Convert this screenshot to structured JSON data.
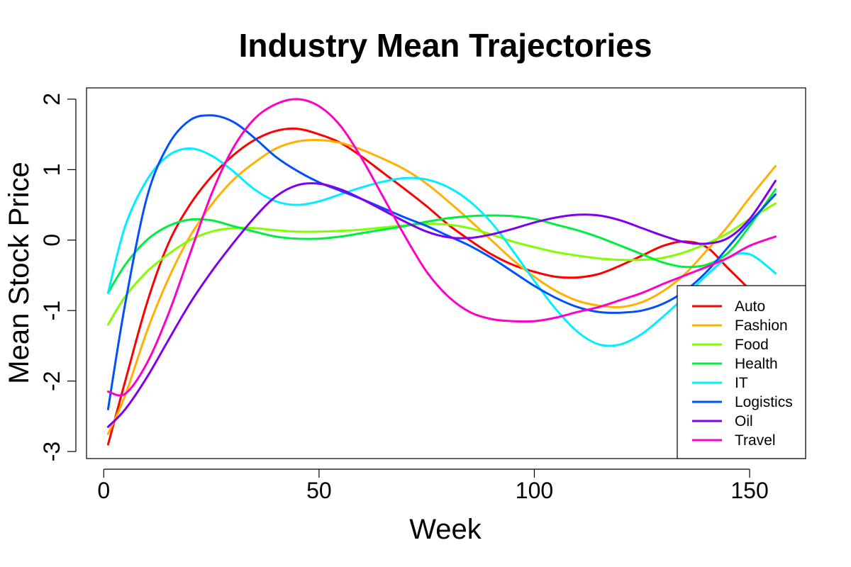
{
  "chart_data": {
    "type": "line",
    "title": "Industry Mean Trajectories",
    "xlabel": "Week",
    "ylabel": "Mean Stock Price",
    "xlim": [
      -4,
      163
    ],
    "ylim": [
      -3.1,
      2.16
    ],
    "xticks": [
      0,
      50,
      100,
      150
    ],
    "yticks": [
      -3,
      -2,
      -1,
      0,
      1,
      2
    ],
    "x_tick_labels": [
      "0",
      "50",
      "100",
      "150"
    ],
    "y_tick_labels": [
      "-3",
      "-2",
      "-1",
      "0",
      "1",
      "2"
    ],
    "grid": false,
    "legend_position": "bottom-right",
    "series": [
      {
        "name": "Auto",
        "color": "#ff0000",
        "points": [
          [
            1,
            -2.9
          ],
          [
            5,
            -2.0
          ],
          [
            10,
            -0.9
          ],
          [
            15,
            -0.05
          ],
          [
            20,
            0.5
          ],
          [
            25,
            0.9
          ],
          [
            30,
            1.2
          ],
          [
            35,
            1.42
          ],
          [
            40,
            1.55
          ],
          [
            45,
            1.58
          ],
          [
            50,
            1.5
          ],
          [
            55,
            1.38
          ],
          [
            60,
            1.18
          ],
          [
            65,
            0.95
          ],
          [
            70,
            0.72
          ],
          [
            75,
            0.48
          ],
          [
            80,
            0.22
          ],
          [
            85,
            0.0
          ],
          [
            90,
            -0.2
          ],
          [
            95,
            -0.35
          ],
          [
            100,
            -0.45
          ],
          [
            105,
            -0.52
          ],
          [
            110,
            -0.53
          ],
          [
            115,
            -0.48
          ],
          [
            120,
            -0.36
          ],
          [
            125,
            -0.22
          ],
          [
            130,
            -0.08
          ],
          [
            135,
            -0.02
          ],
          [
            140,
            -0.1
          ],
          [
            145,
            -0.4
          ],
          [
            150,
            -0.7
          ]
        ]
      },
      {
        "name": "Fashion",
        "color": "#ffb000",
        "points": [
          [
            1,
            -2.75
          ],
          [
            5,
            -2.2
          ],
          [
            10,
            -1.3
          ],
          [
            15,
            -0.55
          ],
          [
            20,
            0.05
          ],
          [
            25,
            0.5
          ],
          [
            30,
            0.85
          ],
          [
            35,
            1.1
          ],
          [
            40,
            1.3
          ],
          [
            45,
            1.4
          ],
          [
            50,
            1.42
          ],
          [
            55,
            1.38
          ],
          [
            60,
            1.28
          ],
          [
            65,
            1.15
          ],
          [
            70,
            1.0
          ],
          [
            75,
            0.8
          ],
          [
            80,
            0.55
          ],
          [
            85,
            0.28
          ],
          [
            90,
            0.0
          ],
          [
            95,
            -0.28
          ],
          [
            100,
            -0.52
          ],
          [
            105,
            -0.72
          ],
          [
            110,
            -0.86
          ],
          [
            115,
            -0.93
          ],
          [
            120,
            -0.95
          ],
          [
            125,
            -0.88
          ],
          [
            130,
            -0.72
          ],
          [
            135,
            -0.48
          ],
          [
            140,
            -0.15
          ],
          [
            145,
            0.2
          ],
          [
            150,
            0.6
          ],
          [
            156,
            1.05
          ]
        ]
      },
      {
        "name": "Food",
        "color": "#80ff00",
        "points": [
          [
            1,
            -1.2
          ],
          [
            5,
            -0.8
          ],
          [
            10,
            -0.45
          ],
          [
            15,
            -0.2
          ],
          [
            20,
            0.0
          ],
          [
            25,
            0.12
          ],
          [
            30,
            0.17
          ],
          [
            35,
            0.17
          ],
          [
            40,
            0.14
          ],
          [
            45,
            0.12
          ],
          [
            50,
            0.12
          ],
          [
            55,
            0.13
          ],
          [
            60,
            0.15
          ],
          [
            65,
            0.18
          ],
          [
            70,
            0.21
          ],
          [
            75,
            0.23
          ],
          [
            80,
            0.22
          ],
          [
            85,
            0.17
          ],
          [
            90,
            0.08
          ],
          [
            95,
            -0.02
          ],
          [
            100,
            -0.1
          ],
          [
            105,
            -0.17
          ],
          [
            110,
            -0.22
          ],
          [
            115,
            -0.26
          ],
          [
            120,
            -0.28
          ],
          [
            125,
            -0.28
          ],
          [
            130,
            -0.25
          ],
          [
            135,
            -0.17
          ],
          [
            140,
            -0.05
          ],
          [
            145,
            0.1
          ],
          [
            150,
            0.3
          ],
          [
            156,
            0.52
          ]
        ]
      },
      {
        "name": "Health",
        "color": "#00ee40",
        "points": [
          [
            1,
            -0.75
          ],
          [
            5,
            -0.35
          ],
          [
            10,
            0.0
          ],
          [
            15,
            0.2
          ],
          [
            20,
            0.29
          ],
          [
            25,
            0.28
          ],
          [
            30,
            0.2
          ],
          [
            35,
            0.12
          ],
          [
            40,
            0.05
          ],
          [
            45,
            0.02
          ],
          [
            50,
            0.02
          ],
          [
            55,
            0.05
          ],
          [
            60,
            0.1
          ],
          [
            65,
            0.15
          ],
          [
            70,
            0.2
          ],
          [
            75,
            0.26
          ],
          [
            80,
            0.31
          ],
          [
            85,
            0.34
          ],
          [
            90,
            0.35
          ],
          [
            95,
            0.34
          ],
          [
            100,
            0.3
          ],
          [
            105,
            0.22
          ],
          [
            110,
            0.14
          ],
          [
            115,
            0.04
          ],
          [
            120,
            -0.08
          ],
          [
            125,
            -0.2
          ],
          [
            130,
            -0.32
          ],
          [
            135,
            -0.38
          ],
          [
            140,
            -0.35
          ],
          [
            145,
            -0.18
          ],
          [
            150,
            0.2
          ],
          [
            156,
            0.72
          ]
        ]
      },
      {
        "name": "IT",
        "color": "#00eeff",
        "points": [
          [
            1,
            -0.75
          ],
          [
            5,
            0.2
          ],
          [
            10,
            0.85
          ],
          [
            15,
            1.2
          ],
          [
            20,
            1.3
          ],
          [
            25,
            1.2
          ],
          [
            30,
            0.98
          ],
          [
            35,
            0.72
          ],
          [
            40,
            0.55
          ],
          [
            45,
            0.5
          ],
          [
            50,
            0.55
          ],
          [
            55,
            0.65
          ],
          [
            60,
            0.75
          ],
          [
            65,
            0.83
          ],
          [
            70,
            0.88
          ],
          [
            75,
            0.86
          ],
          [
            80,
            0.75
          ],
          [
            85,
            0.55
          ],
          [
            90,
            0.25
          ],
          [
            95,
            -0.15
          ],
          [
            100,
            -0.58
          ],
          [
            105,
            -0.98
          ],
          [
            110,
            -1.3
          ],
          [
            115,
            -1.48
          ],
          [
            120,
            -1.48
          ],
          [
            125,
            -1.33
          ],
          [
            130,
            -1.08
          ],
          [
            135,
            -0.8
          ],
          [
            140,
            -0.5
          ],
          [
            145,
            -0.25
          ],
          [
            150,
            -0.2
          ],
          [
            156,
            -0.47
          ]
        ]
      },
      {
        "name": "Logistics",
        "color": "#0050ff",
        "points": [
          [
            1,
            -2.4
          ],
          [
            5,
            -0.9
          ],
          [
            10,
            0.6
          ],
          [
            15,
            1.35
          ],
          [
            20,
            1.7
          ],
          [
            25,
            1.77
          ],
          [
            30,
            1.68
          ],
          [
            35,
            1.45
          ],
          [
            40,
            1.18
          ],
          [
            45,
            0.98
          ],
          [
            50,
            0.82
          ],
          [
            55,
            0.7
          ],
          [
            60,
            0.58
          ],
          [
            65,
            0.45
          ],
          [
            70,
            0.32
          ],
          [
            75,
            0.2
          ],
          [
            80,
            0.06
          ],
          [
            85,
            -0.08
          ],
          [
            90,
            -0.25
          ],
          [
            95,
            -0.45
          ],
          [
            100,
            -0.65
          ],
          [
            105,
            -0.82
          ],
          [
            110,
            -0.95
          ],
          [
            115,
            -1.02
          ],
          [
            120,
            -1.03
          ],
          [
            125,
            -1.0
          ],
          [
            130,
            -0.9
          ],
          [
            135,
            -0.72
          ],
          [
            140,
            -0.45
          ],
          [
            145,
            -0.1
          ],
          [
            150,
            0.25
          ],
          [
            156,
            0.65
          ]
        ]
      },
      {
        "name": "Oil",
        "color": "#8000ee",
        "points": [
          [
            1,
            -2.65
          ],
          [
            5,
            -2.4
          ],
          [
            10,
            -1.95
          ],
          [
            15,
            -1.42
          ],
          [
            20,
            -0.9
          ],
          [
            25,
            -0.45
          ],
          [
            30,
            -0.05
          ],
          [
            35,
            0.32
          ],
          [
            40,
            0.62
          ],
          [
            45,
            0.78
          ],
          [
            50,
            0.8
          ],
          [
            55,
            0.72
          ],
          [
            60,
            0.58
          ],
          [
            65,
            0.42
          ],
          [
            70,
            0.26
          ],
          [
            75,
            0.12
          ],
          [
            80,
            0.04
          ],
          [
            85,
            0.03
          ],
          [
            90,
            0.08
          ],
          [
            95,
            0.16
          ],
          [
            100,
            0.25
          ],
          [
            105,
            0.32
          ],
          [
            110,
            0.36
          ],
          [
            115,
            0.35
          ],
          [
            120,
            0.28
          ],
          [
            125,
            0.17
          ],
          [
            130,
            0.06
          ],
          [
            135,
            -0.03
          ],
          [
            140,
            -0.05
          ],
          [
            145,
            0.03
          ],
          [
            150,
            0.3
          ],
          [
            156,
            0.84
          ]
        ]
      },
      {
        "name": "Travel",
        "color": "#ff00c8",
        "points": [
          [
            1,
            -2.15
          ],
          [
            5,
            -2.18
          ],
          [
            10,
            -1.75
          ],
          [
            15,
            -1.05
          ],
          [
            20,
            -0.2
          ],
          [
            25,
            0.65
          ],
          [
            30,
            1.3
          ],
          [
            35,
            1.72
          ],
          [
            40,
            1.93
          ],
          [
            45,
            2.0
          ],
          [
            50,
            1.9
          ],
          [
            55,
            1.62
          ],
          [
            60,
            1.15
          ],
          [
            65,
            0.6
          ],
          [
            70,
            0.05
          ],
          [
            75,
            -0.45
          ],
          [
            80,
            -0.8
          ],
          [
            85,
            -1.02
          ],
          [
            90,
            -1.12
          ],
          [
            95,
            -1.15
          ],
          [
            100,
            -1.15
          ],
          [
            105,
            -1.1
          ],
          [
            110,
            -1.02
          ],
          [
            115,
            -0.95
          ],
          [
            120,
            -0.85
          ],
          [
            125,
            -0.75
          ],
          [
            130,
            -0.62
          ],
          [
            135,
            -0.5
          ],
          [
            140,
            -0.38
          ],
          [
            145,
            -0.25
          ],
          [
            150,
            -0.08
          ],
          [
            156,
            0.05
          ]
        ]
      }
    ]
  }
}
